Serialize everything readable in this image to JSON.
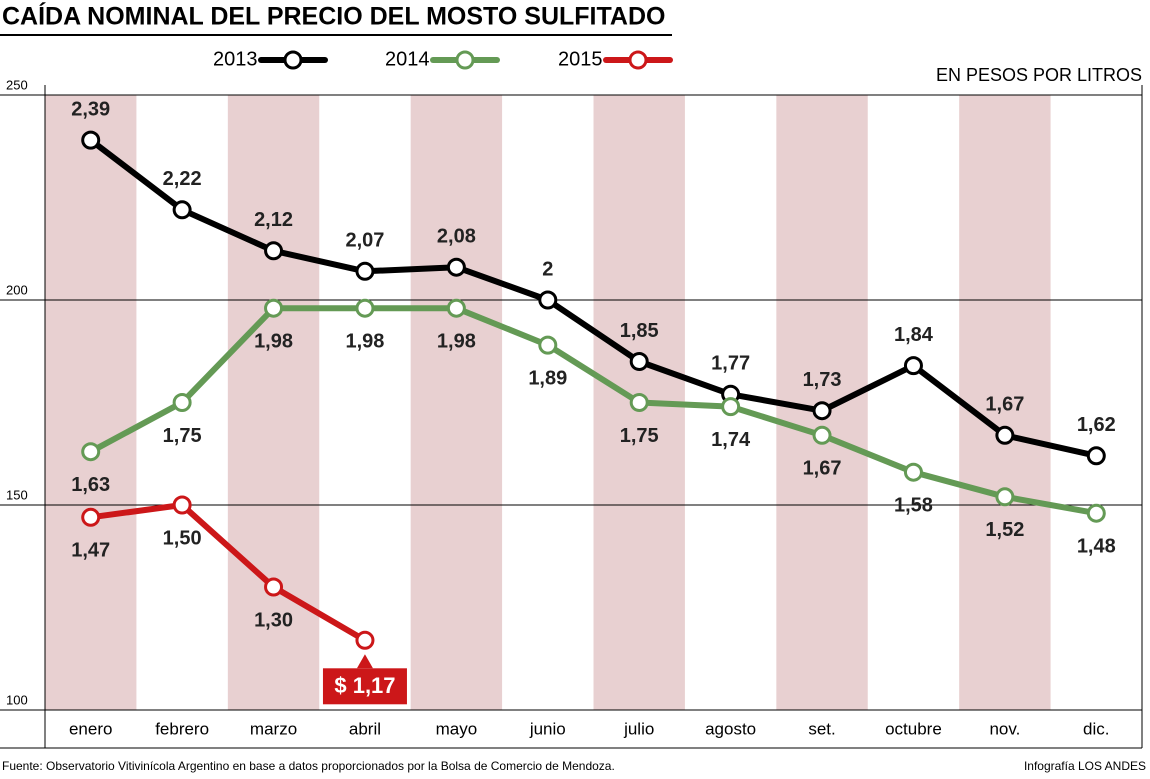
{
  "chart_data": {
    "type": "line",
    "title": "CAÍDA NOMINAL DEL PRECIO DEL MOSTO SULFITADO",
    "subtitle": "EN PESOS POR LITROS",
    "source": "Fuente: Observatorio Vitivinícola Argentino en base a datos proporcionados por la Bolsa de Comercio de Mendoza.",
    "credit": "Infografía LOS ANDES",
    "categories": [
      "enero",
      "febrero",
      "marzo",
      "abril",
      "mayo",
      "junio",
      "julio",
      "agosto",
      "set.",
      "octubre",
      "nov.",
      "dic."
    ],
    "series": [
      {
        "name": "2013",
        "color": "#000000",
        "values": [
          239,
          222,
          212,
          207,
          208,
          200,
          185,
          177,
          173,
          184,
          167,
          162
        ],
        "value_labels": [
          "2,39",
          "2,22",
          "2,12",
          "2,07",
          "2,08",
          "2",
          "1,85",
          "1,77",
          "1,73",
          "1,84",
          "1,67",
          "1,62"
        ]
      },
      {
        "name": "2014",
        "color": "#649a55",
        "values": [
          163,
          175,
          198,
          198,
          198,
          189,
          175,
          174,
          167,
          158,
          152,
          148
        ],
        "value_labels": [
          "1,63",
          "1,75",
          "1,98",
          "1,98",
          "1,98",
          "1,89",
          "1,75",
          "1,74",
          "1,67",
          "1,58",
          "1,52",
          "1,48"
        ]
      },
      {
        "name": "2015",
        "color": "#cc1719",
        "values": [
          147,
          150,
          130,
          117,
          null,
          null,
          null,
          null,
          null,
          null,
          null,
          null
        ],
        "value_labels": [
          "1,47",
          "1,50",
          "1,30",
          "$ 1,17",
          null,
          null,
          null,
          null,
          null,
          null,
          null,
          null
        ]
      }
    ],
    "ylim": [
      100,
      250
    ],
    "yticks": [
      100,
      150,
      200,
      250
    ],
    "grid": true,
    "band_color": "#e8d0d1"
  }
}
